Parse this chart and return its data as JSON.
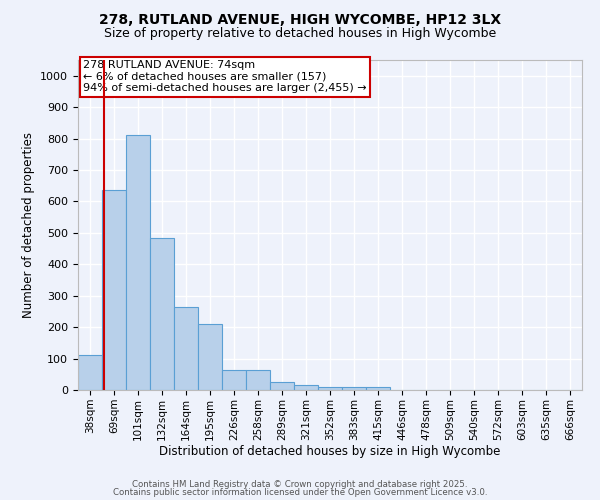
{
  "title1": "278, RUTLAND AVENUE, HIGH WYCOMBE, HP12 3LX",
  "title2": "Size of property relative to detached houses in High Wycombe",
  "xlabel": "Distribution of detached houses by size in High Wycombe",
  "ylabel": "Number of detached properties",
  "categories": [
    "38sqm",
    "69sqm",
    "101sqm",
    "132sqm",
    "164sqm",
    "195sqm",
    "226sqm",
    "258sqm",
    "289sqm",
    "321sqm",
    "352sqm",
    "383sqm",
    "415sqm",
    "446sqm",
    "478sqm",
    "509sqm",
    "540sqm",
    "572sqm",
    "603sqm",
    "635sqm",
    "666sqm"
  ],
  "values": [
    110,
    635,
    810,
    485,
    265,
    210,
    65,
    65,
    27,
    17,
    10,
    10,
    10,
    0,
    0,
    0,
    0,
    0,
    0,
    0,
    0
  ],
  "bar_color": "#b8d0ea",
  "bar_edge_color": "#5a9fd4",
  "vline_color": "#cc0000",
  "annotation_text": "278 RUTLAND AVENUE: 74sqm\n← 6% of detached houses are smaller (157)\n94% of semi-detached houses are larger (2,455) →",
  "ylim": [
    0,
    1050
  ],
  "yticks": [
    0,
    100,
    200,
    300,
    400,
    500,
    600,
    700,
    800,
    900,
    1000
  ],
  "background_color": "#eef2fb",
  "grid_color": "#ffffff",
  "footer1": "Contains HM Land Registry data © Crown copyright and database right 2025.",
  "footer2": "Contains public sector information licensed under the Open Government Licence v3.0.",
  "title_fontsize": 10,
  "subtitle_fontsize": 9,
  "axis_label_fontsize": 8.5,
  "tick_fontsize": 7.5,
  "annotation_fontsize": 8
}
